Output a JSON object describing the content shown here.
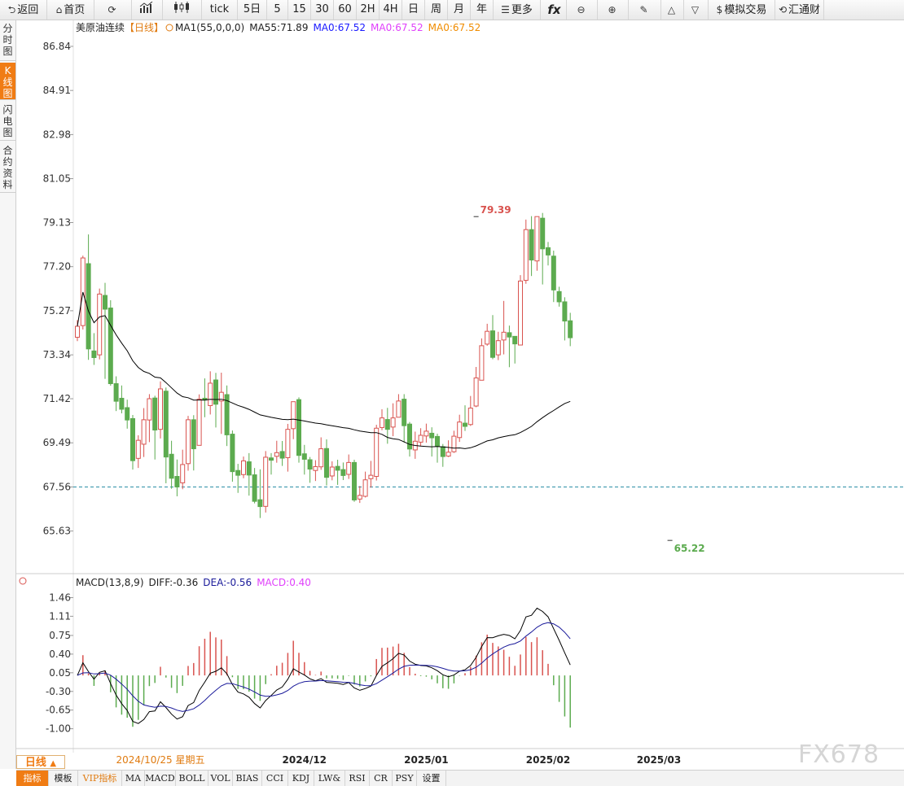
{
  "toolbar": [
    {
      "icon": "back-icon",
      "glyph": "⮌",
      "label": "返回"
    },
    {
      "icon": "home-icon",
      "glyph": "⌂",
      "label": "首页"
    },
    {
      "icon": "refresh-icon",
      "glyph": "⟳",
      "label": ""
    },
    {
      "icon": "line-chart-icon",
      "glyph": "",
      "label": ""
    },
    {
      "icon": "candle-icon",
      "glyph": "",
      "label": ""
    },
    {
      "icon": "",
      "glyph": "",
      "label": "tick"
    },
    {
      "icon": "",
      "glyph": "",
      "label": "5日"
    },
    {
      "icon": "",
      "glyph": "",
      "label": "5"
    },
    {
      "icon": "",
      "glyph": "",
      "label": "15"
    },
    {
      "icon": "",
      "glyph": "",
      "label": "30"
    },
    {
      "icon": "",
      "glyph": "",
      "label": "60"
    },
    {
      "icon": "",
      "glyph": "",
      "label": "2H"
    },
    {
      "icon": "",
      "glyph": "",
      "label": "4H"
    },
    {
      "icon": "",
      "glyph": "",
      "label": "日"
    },
    {
      "icon": "",
      "glyph": "",
      "label": "周"
    },
    {
      "icon": "",
      "glyph": "",
      "label": "月"
    },
    {
      "icon": "",
      "glyph": "",
      "label": "年"
    },
    {
      "icon": "menu-icon",
      "glyph": "☰",
      "label": "更多"
    },
    {
      "icon": "function-icon",
      "glyph": "",
      "label": "fx"
    },
    {
      "icon": "zoom-out-icon",
      "glyph": "⊖",
      "label": ""
    },
    {
      "icon": "zoom-in-icon",
      "glyph": "⊕",
      "label": ""
    },
    {
      "icon": "pen-icon",
      "glyph": "✎",
      "label": ""
    },
    {
      "icon": "triangle-up-icon",
      "glyph": "△",
      "label": ""
    },
    {
      "icon": "triangle-down-icon",
      "glyph": "▽",
      "label": ""
    },
    {
      "icon": "dollar-icon",
      "glyph": "$",
      "label": "模拟交易"
    },
    {
      "icon": "exchange-icon",
      "glyph": "⟲",
      "label": "汇通财"
    }
  ],
  "side_tabs": [
    "分时图",
    "K线图",
    "闪电图",
    "合约资料"
  ],
  "bottom_tabs": [
    "指标",
    "模板",
    "VIP指标",
    "MA",
    "MACD",
    "BOLL",
    "VOL",
    "BIAS",
    "CCI",
    "KDJ",
    "LW&",
    "RSI",
    "CR",
    "PSY",
    "设置"
  ],
  "period_label": "日线",
  "watermark": "FX678",
  "colors": {
    "up": "#d9534f",
    "down": "#5cab4f",
    "ma55": "#000000",
    "dea": "#1a1a9a",
    "macd": "#e040fb",
    "ma_blue": "#1a1aff",
    "ma_orange": "#f08c00",
    "dashed": "#2b8fa6"
  },
  "chart_data": [
    {
      "type": "candlestick",
      "title": "美原油连续",
      "period": "【日线】",
      "legend": {
        "ma1": "MA1(55,0,0,0)",
        "ma55": "MA55:71.89",
        "ma_a": "MA0:67.52",
        "ma_b": "MA0:67.52",
        "ma_c": "MA0:67.52"
      },
      "y_ticks": [
        86.84,
        84.91,
        82.98,
        81.05,
        79.13,
        77.2,
        75.27,
        73.34,
        71.42,
        69.49,
        67.56,
        65.63
      ],
      "ylim": [
        64.3,
        87.8
      ],
      "x_labels": [
        {
          "label": "2024/10/25 星期五",
          "index": 15
        },
        {
          "label": "2024/12",
          "index": 41
        },
        {
          "label": "2025/01",
          "index": 63
        },
        {
          "label": "2025/02",
          "index": 85
        },
        {
          "label": "2025/03",
          "index": 105
        }
      ],
      "current_price": 67.56,
      "annotations": [
        {
          "text": "79.39",
          "index": 72,
          "value": 79.39
        },
        {
          "text": "65.22",
          "index": 107,
          "value": 65.22
        }
      ],
      "candles": [
        [
          74.11,
          74.59,
          73.94,
          74.86
        ],
        [
          74.62,
          77.58,
          74.45,
          77.68
        ],
        [
          77.33,
          73.6,
          73.12,
          78.61
        ],
        [
          73.51,
          73.22,
          72.9,
          74.29
        ],
        [
          73.34,
          76.0,
          73.14,
          76.24
        ],
        [
          75.94,
          75.34,
          72.29,
          76.49
        ],
        [
          75.39,
          72.08,
          71.99,
          75.73
        ],
        [
          72.08,
          71.31,
          70.88,
          72.4
        ],
        [
          71.44,
          70.96,
          70.78,
          72.0
        ],
        [
          71.03,
          70.49,
          70.11,
          71.38
        ],
        [
          70.55,
          68.71,
          68.32,
          70.71
        ],
        [
          68.81,
          69.6,
          68.39,
          69.82
        ],
        [
          69.43,
          70.5,
          68.87,
          71.01
        ],
        [
          70.49,
          71.42,
          69.52,
          71.62
        ],
        [
          71.45,
          70.05,
          68.76,
          71.55
        ],
        [
          70.08,
          71.85,
          69.68,
          72.18
        ],
        [
          71.75,
          68.87,
          67.72,
          71.91
        ],
        [
          68.99,
          67.94,
          67.48,
          69.58
        ],
        [
          68.02,
          67.56,
          67.15,
          68.76
        ],
        [
          67.74,
          68.54,
          67.46,
          69.19
        ],
        [
          68.58,
          70.5,
          68.27,
          70.67
        ],
        [
          70.5,
          69.23,
          68.28,
          70.7
        ],
        [
          69.38,
          71.4,
          69.39,
          71.61
        ],
        [
          71.44,
          71.36,
          70.61,
          72.31
        ],
        [
          71.12,
          72.1,
          70.73,
          72.62
        ],
        [
          72.24,
          71.18,
          70.16,
          72.55
        ],
        [
          71.32,
          71.7,
          69.88,
          72.56
        ],
        [
          71.6,
          69.84,
          69.35,
          72.0
        ],
        [
          69.87,
          68.23,
          67.79,
          70.03
        ],
        [
          68.28,
          68.07,
          67.3,
          68.57
        ],
        [
          68.1,
          68.7,
          67.94,
          68.89
        ],
        [
          68.66,
          68.08,
          67.18,
          69.04
        ],
        [
          68.09,
          66.93,
          66.84,
          68.39
        ],
        [
          67.0,
          66.7,
          66.2,
          68.33
        ],
        [
          66.71,
          68.86,
          66.44,
          69.13
        ],
        [
          68.83,
          68.73,
          68.1,
          69.04
        ],
        [
          68.9,
          69.06,
          68.62,
          69.58
        ],
        [
          69.11,
          68.82,
          68.48,
          69.57
        ],
        [
          68.84,
          70.08,
          68.23,
          70.32
        ],
        [
          70.11,
          71.29,
          69.65,
          71.26
        ],
        [
          71.38,
          68.94,
          68.62,
          71.48
        ],
        [
          69.01,
          68.77,
          68.1,
          69.4
        ],
        [
          68.75,
          68.34,
          67.74,
          68.87
        ],
        [
          68.28,
          68.45,
          67.82,
          68.73
        ],
        [
          68.44,
          69.23,
          68.31,
          69.73
        ],
        [
          69.24,
          67.98,
          67.62,
          69.64
        ],
        [
          68.04,
          68.43,
          67.85,
          68.68
        ],
        [
          68.46,
          68.29,
          67.65,
          68.75
        ],
        [
          68.32,
          68.06,
          67.86,
          68.63
        ],
        [
          68.11,
          68.63,
          67.91,
          68.98
        ],
        [
          68.63,
          66.99,
          66.91,
          68.75
        ],
        [
          67.03,
          67.19,
          66.86,
          67.6
        ],
        [
          67.15,
          67.87,
          67.1,
          68.23
        ],
        [
          67.92,
          68.07,
          67.53,
          68.7
        ],
        [
          68.02,
          70.13,
          67.84,
          70.28
        ],
        [
          70.16,
          70.58,
          70.04,
          70.96
        ],
        [
          70.51,
          70.08,
          69.45,
          71.02
        ],
        [
          70.18,
          70.58,
          69.78,
          71.22
        ],
        [
          70.61,
          71.32,
          70.63,
          71.62
        ],
        [
          71.4,
          70.24,
          69.5,
          71.62
        ],
        [
          70.31,
          69.22,
          68.89,
          70.4
        ],
        [
          69.18,
          69.56,
          68.79,
          69.98
        ],
        [
          69.52,
          69.82,
          69.36,
          70.13
        ],
        [
          69.79,
          70.0,
          69.5,
          70.33
        ],
        [
          69.91,
          69.71,
          68.89,
          70.17
        ],
        [
          69.77,
          69.35,
          68.62,
          69.89
        ],
        [
          69.32,
          68.89,
          68.44,
          69.44
        ],
        [
          68.91,
          69.08,
          68.87,
          69.6
        ],
        [
          69.1,
          69.78,
          69.05,
          70.02
        ],
        [
          69.72,
          70.4,
          69.53,
          70.72
        ],
        [
          70.35,
          70.21,
          70.01,
          71.13
        ],
        [
          70.29,
          71.01,
          70.23,
          71.54
        ],
        [
          71.1,
          72.33,
          71.05,
          72.81
        ],
        [
          72.23,
          73.74,
          72.31,
          74.06
        ],
        [
          73.81,
          74.37,
          73.74,
          74.7
        ],
        [
          74.39,
          73.23,
          73.15,
          75.08
        ],
        [
          73.34,
          73.96,
          73.11,
          74.35
        ],
        [
          73.99,
          74.33,
          73.36,
          75.7
        ],
        [
          74.31,
          74.12,
          72.8,
          74.62
        ],
        [
          74.15,
          73.82,
          72.96,
          74.11
        ],
        [
          73.77,
          76.57,
          73.95,
          76.83
        ],
        [
          76.6,
          78.82,
          76.45,
          79.26
        ],
        [
          78.82,
          77.49,
          76.79,
          79.41
        ],
        [
          77.45,
          79.39,
          77.02,
          79.39
        ],
        [
          79.32,
          77.98,
          76.42,
          79.55
        ],
        [
          78.03,
          77.71,
          77.25,
          78.28
        ],
        [
          77.66,
          76.18,
          75.65,
          77.9
        ],
        [
          76.11,
          75.66,
          75.45,
          76.32
        ],
        [
          75.66,
          74.82,
          73.97,
          75.86
        ],
        [
          74.83,
          74.09,
          73.72,
          75.18
        ]
      ],
      "macd": {
        "title": "MACD(13,8,9)",
        "diff_label": "DIFF:-0.36",
        "dea_label": "DEA:-0.56",
        "macd_label": "MACD:0.40",
        "y_ticks": [
          1.46,
          1.11,
          0.75,
          0.4,
          0.05,
          -0.3,
          -0.65,
          -1.0
        ],
        "ylim": [
          -1.25,
          1.65
        ]
      }
    }
  ]
}
